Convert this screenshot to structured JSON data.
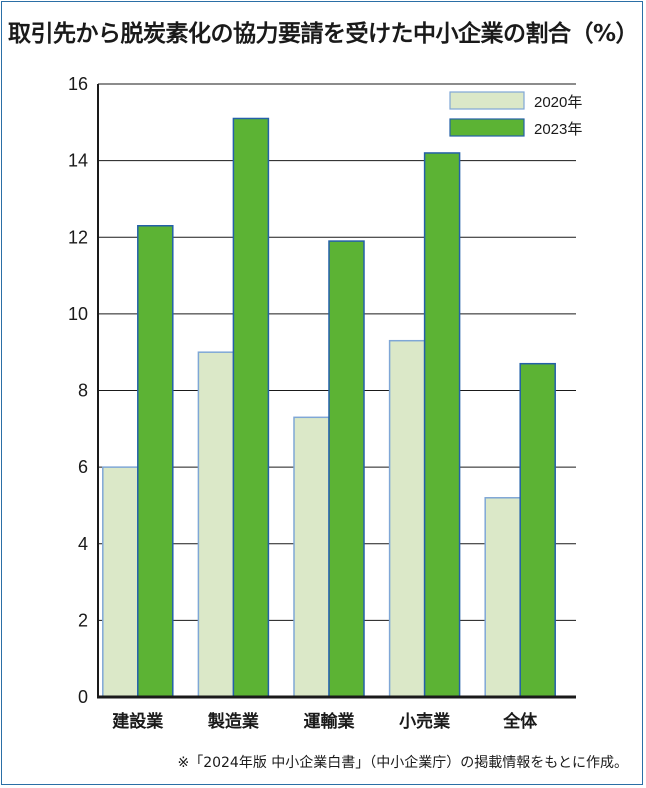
{
  "title": "取引先から脱炭素化の協力要請を受けた中小企業の割合（%）",
  "note": "※「2024年版 中小企業白書」（中小企業庁）の掲載情報をもとに作成。",
  "colors": {
    "series_2020": "#dbe8c8",
    "series_2023": "#5cb334",
    "edge_2020": "#7fa7d6",
    "edge_2023": "#2460a8",
    "grid": "#1a1a1a"
  },
  "chart_data": {
    "type": "bar",
    "title": "取引先から脱炭素化の協力要請を受けた中小企業の割合（%）",
    "xlabel": "",
    "ylabel": "",
    "categories": [
      "建設業",
      "製造業",
      "運輸業",
      "小売業",
      "全体"
    ],
    "series": [
      {
        "name": "2020年",
        "values": [
          6.0,
          9.0,
          7.3,
          9.3,
          5.2
        ]
      },
      {
        "name": "2023年",
        "values": [
          12.3,
          15.1,
          11.9,
          14.2,
          8.7
        ]
      }
    ],
    "ylim": [
      0,
      16
    ],
    "yticks": [
      "0",
      "2",
      "4",
      "6",
      "8",
      "10",
      "12",
      "14",
      "16"
    ],
    "grid": true,
    "legend_position": "top-right"
  }
}
